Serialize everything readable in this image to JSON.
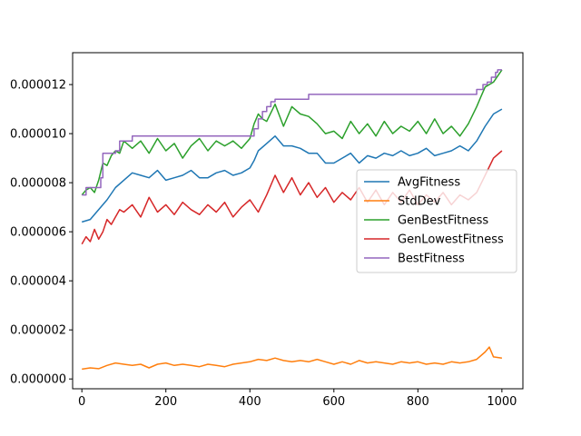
{
  "chart_data": {
    "type": "line",
    "title": "",
    "xlabel": "",
    "ylabel": "",
    "xlim": [
      -22,
      1050
    ],
    "ylim": [
      -4e-07,
      1.33e-05
    ],
    "xticks": [
      0,
      200,
      400,
      600,
      800,
      1000
    ],
    "xtick_labels": [
      "0",
      "200",
      "400",
      "600",
      "800",
      "1000"
    ],
    "yticks": [
      0.0,
      2e-06,
      4e-06,
      6e-06,
      8e-06,
      1e-05,
      1.2e-05
    ],
    "ytick_labels": [
      "0.000000",
      "0.000002",
      "0.000004",
      "0.000006",
      "0.000008",
      "0.000010",
      "0.000012"
    ],
    "grid": false,
    "legend_position": "center-right",
    "series": [
      {
        "name": "AvgFitness",
        "color": "#1f77b4",
        "x": [
          0,
          20,
          40,
          60,
          80,
          100,
          120,
          140,
          160,
          180,
          200,
          220,
          240,
          260,
          280,
          300,
          320,
          340,
          360,
          380,
          400,
          410,
          420,
          440,
          460,
          480,
          500,
          520,
          540,
          560,
          580,
          600,
          620,
          640,
          660,
          680,
          700,
          720,
          740,
          760,
          780,
          800,
          820,
          840,
          860,
          880,
          900,
          920,
          940,
          960,
          980,
          1000
        ],
        "y": [
          6.4e-06,
          6.5e-06,
          6.9e-06,
          7.3e-06,
          7.8e-06,
          8.1e-06,
          8.4e-06,
          8.3e-06,
          8.2e-06,
          8.5e-06,
          8.1e-06,
          8.2e-06,
          8.3e-06,
          8.5e-06,
          8.2e-06,
          8.2e-06,
          8.4e-06,
          8.5e-06,
          8.3e-06,
          8.4e-06,
          8.6e-06,
          8.9e-06,
          9.3e-06,
          9.6e-06,
          9.9e-06,
          9.5e-06,
          9.5e-06,
          9.4e-06,
          9.2e-06,
          9.2e-06,
          8.8e-06,
          8.8e-06,
          9e-06,
          9.2e-06,
          8.8e-06,
          9.1e-06,
          9e-06,
          9.2e-06,
          9.1e-06,
          9.3e-06,
          9.1e-06,
          9.2e-06,
          9.4e-06,
          9.1e-06,
          9.2e-06,
          9.3e-06,
          9.5e-06,
          9.3e-06,
          9.7e-06,
          1.03e-05,
          1.08e-05,
          1.1e-05
        ]
      },
      {
        "name": "StdDev",
        "color": "#ff7f0e",
        "x": [
          0,
          20,
          40,
          60,
          80,
          100,
          120,
          140,
          160,
          180,
          200,
          220,
          240,
          260,
          280,
          300,
          320,
          340,
          360,
          380,
          400,
          420,
          440,
          460,
          480,
          500,
          520,
          540,
          560,
          580,
          600,
          620,
          640,
          660,
          680,
          700,
          720,
          740,
          760,
          780,
          800,
          820,
          840,
          860,
          880,
          900,
          920,
          940,
          960,
          970,
          980,
          1000
        ],
        "y": [
          4e-07,
          4.5e-07,
          4.2e-07,
          5.5e-07,
          6.5e-07,
          6e-07,
          5.5e-07,
          6e-07,
          4.5e-07,
          6e-07,
          6.5e-07,
          5.5e-07,
          6e-07,
          5.5e-07,
          5e-07,
          6e-07,
          5.5e-07,
          5e-07,
          6e-07,
          6.5e-07,
          7e-07,
          8e-07,
          7.5e-07,
          8.5e-07,
          7.5e-07,
          7e-07,
          7.5e-07,
          7e-07,
          8e-07,
          7e-07,
          6e-07,
          7e-07,
          6e-07,
          7.5e-07,
          6.5e-07,
          7e-07,
          6.5e-07,
          6e-07,
          7e-07,
          6.5e-07,
          7e-07,
          6e-07,
          6.5e-07,
          6e-07,
          7e-07,
          6.5e-07,
          7e-07,
          8e-07,
          1.1e-06,
          1.3e-06,
          9e-07,
          8.5e-07
        ]
      },
      {
        "name": "GenBestFitness",
        "color": "#2ca02c",
        "x": [
          0,
          10,
          20,
          30,
          40,
          50,
          60,
          70,
          80,
          90,
          100,
          120,
          140,
          160,
          180,
          200,
          220,
          240,
          260,
          280,
          300,
          320,
          340,
          360,
          380,
          400,
          410,
          420,
          430,
          440,
          460,
          480,
          500,
          520,
          540,
          560,
          580,
          600,
          620,
          640,
          660,
          680,
          700,
          720,
          740,
          760,
          780,
          800,
          820,
          840,
          860,
          880,
          900,
          920,
          940,
          950,
          960,
          980,
          1000
        ],
        "y": [
          7.5e-06,
          7.7e-06,
          7.8e-06,
          7.6e-06,
          8.1e-06,
          8.8e-06,
          8.7e-06,
          9.1e-06,
          9.3e-06,
          9.2e-06,
          9.7e-06,
          9.4e-06,
          9.7e-06,
          9.2e-06,
          9.8e-06,
          9.3e-06,
          9.6e-06,
          9e-06,
          9.5e-06,
          9.8e-06,
          9.3e-06,
          9.7e-06,
          9.5e-06,
          9.7e-06,
          9.4e-06,
          9.8e-06,
          1.04e-05,
          1.08e-05,
          1.06e-05,
          1.05e-05,
          1.12e-05,
          1.03e-05,
          1.11e-05,
          1.08e-05,
          1.07e-05,
          1.04e-05,
          1e-05,
          1.01e-05,
          9.8e-06,
          1.05e-05,
          1e-05,
          1.04e-05,
          9.9e-06,
          1.05e-05,
          1e-05,
          1.03e-05,
          1.01e-05,
          1.05e-05,
          1e-05,
          1.06e-05,
          1e-05,
          1.03e-05,
          9.9e-06,
          1.04e-05,
          1.11e-05,
          1.15e-05,
          1.19e-05,
          1.21e-05,
          1.26e-05
        ]
      },
      {
        "name": "GenLowestFitness",
        "color": "#d62728",
        "x": [
          0,
          10,
          20,
          30,
          40,
          50,
          60,
          70,
          80,
          90,
          100,
          120,
          140,
          160,
          180,
          200,
          220,
          240,
          260,
          280,
          300,
          320,
          340,
          360,
          380,
          400,
          420,
          440,
          460,
          480,
          500,
          520,
          540,
          560,
          580,
          600,
          620,
          640,
          660,
          680,
          700,
          720,
          740,
          760,
          780,
          800,
          820,
          840,
          860,
          880,
          900,
          920,
          940,
          960,
          980,
          1000
        ],
        "y": [
          5.5e-06,
          5.8e-06,
          5.6e-06,
          6.1e-06,
          5.7e-06,
          6e-06,
          6.5e-06,
          6.3e-06,
          6.6e-06,
          6.9e-06,
          6.8e-06,
          7.1e-06,
          6.6e-06,
          7.4e-06,
          6.8e-06,
          7.1e-06,
          6.7e-06,
          7.2e-06,
          6.9e-06,
          6.7e-06,
          7.1e-06,
          6.8e-06,
          7.2e-06,
          6.6e-06,
          7e-06,
          7.3e-06,
          6.8e-06,
          7.5e-06,
          8.3e-06,
          7.6e-06,
          8.2e-06,
          7.5e-06,
          8e-06,
          7.4e-06,
          7.8e-06,
          7.2e-06,
          7.6e-06,
          7.3e-06,
          7.8e-06,
          7.2e-06,
          7.7e-06,
          7.1e-06,
          7.6e-06,
          7.2e-06,
          7.7e-06,
          7.1e-06,
          7.5e-06,
          7.2e-06,
          7.6e-06,
          7.1e-06,
          7.5e-06,
          7.3e-06,
          7.6e-06,
          8.3e-06,
          9e-06,
          9.3e-06
        ]
      },
      {
        "name": "BestFitness",
        "color": "#9467bd",
        "x": [
          0,
          10,
          10,
          45,
          45,
          50,
          50,
          80,
          80,
          90,
          90,
          120,
          120,
          410,
          410,
          420,
          420,
          430,
          430,
          440,
          440,
          450,
          450,
          460,
          460,
          540,
          540,
          940,
          940,
          955,
          955,
          965,
          965,
          975,
          975,
          985,
          985,
          990,
          990,
          1000
        ],
        "y": [
          7.5e-06,
          7.5e-06,
          7.8e-06,
          7.8e-06,
          8.2e-06,
          8.2e-06,
          9.2e-06,
          9.2e-06,
          9.3e-06,
          9.3e-06,
          9.7e-06,
          9.7e-06,
          9.9e-06,
          9.9e-06,
          1.02e-05,
          1.02e-05,
          1.06e-05,
          1.06e-05,
          1.09e-05,
          1.09e-05,
          1.11e-05,
          1.11e-05,
          1.13e-05,
          1.13e-05,
          1.14e-05,
          1.14e-05,
          1.16e-05,
          1.16e-05,
          1.18e-05,
          1.18e-05,
          1.2e-05,
          1.2e-05,
          1.21e-05,
          1.21e-05,
          1.23e-05,
          1.23e-05,
          1.25e-05,
          1.25e-05,
          1.26e-05,
          1.26e-05
        ]
      }
    ]
  }
}
